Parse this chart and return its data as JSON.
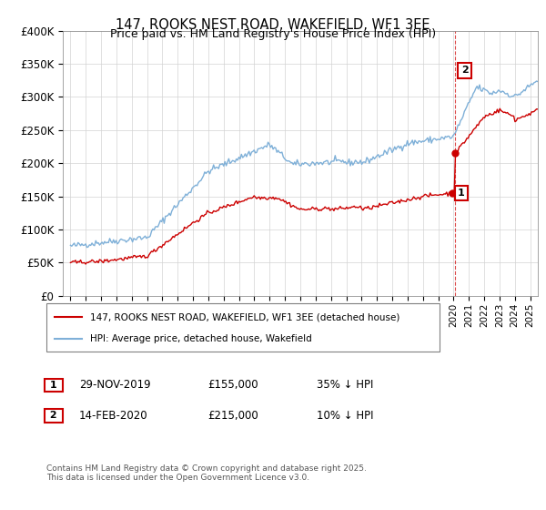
{
  "title": "147, ROOKS NEST ROAD, WAKEFIELD, WF1 3EE",
  "subtitle": "Price paid vs. HM Land Registry's House Price Index (HPI)",
  "legend_line1": "147, ROOKS NEST ROAD, WAKEFIELD, WF1 3EE (detached house)",
  "legend_line2": "HPI: Average price, detached house, Wakefield",
  "footer": "Contains HM Land Registry data © Crown copyright and database right 2025.\nThis data is licensed under the Open Government Licence v3.0.",
  "annotation1_label": "1",
  "annotation1_date": "29-NOV-2019",
  "annotation1_price": "£155,000",
  "annotation1_hpi": "35% ↓ HPI",
  "annotation2_label": "2",
  "annotation2_date": "14-FEB-2020",
  "annotation2_price": "£215,000",
  "annotation2_hpi": "10% ↓ HPI",
  "point1_x": 2019.91,
  "point1_y": 155000,
  "point2_x": 2020.12,
  "point2_y": 215000,
  "color_price": "#cc0000",
  "color_hpi": "#7fb0d8",
  "color_vline": "#cc0000",
  "ylim": [
    0,
    400000
  ],
  "xlim": [
    1994.5,
    2025.5
  ],
  "yticks": [
    0,
    50000,
    100000,
    150000,
    200000,
    250000,
    300000,
    350000,
    400000
  ],
  "ytick_labels": [
    "£0",
    "£50K",
    "£100K",
    "£150K",
    "£200K",
    "£250K",
    "£300K",
    "£350K",
    "£400K"
  ]
}
